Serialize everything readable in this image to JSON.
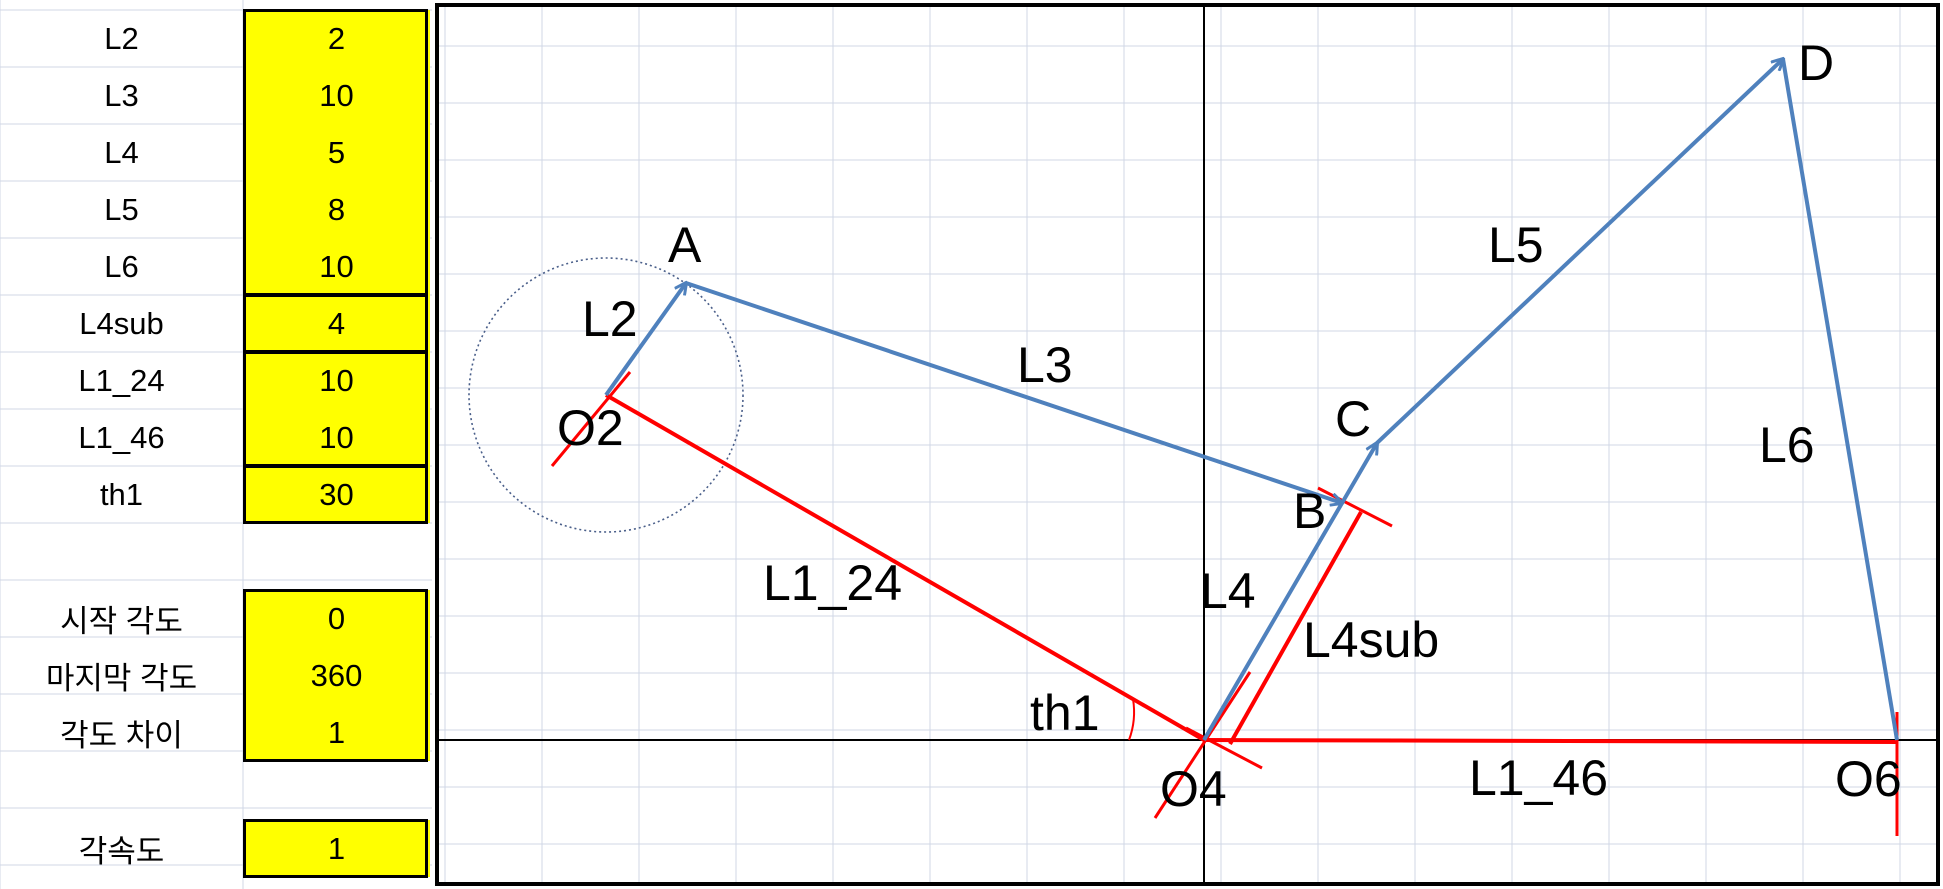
{
  "parameters": [
    {
      "label": "L2",
      "value": "2"
    },
    {
      "label": "L3",
      "value": "10"
    },
    {
      "label": "L4",
      "value": "5"
    },
    {
      "label": "L5",
      "value": "8"
    },
    {
      "label": "L6",
      "value": "10"
    },
    {
      "label": "L4sub",
      "value": "4"
    },
    {
      "label": "L1_24",
      "value": "10"
    },
    {
      "label": "L1_46",
      "value": "10"
    },
    {
      "label": "th1",
      "value": "30"
    }
  ],
  "angles": [
    {
      "label": "시작 각도",
      "value": "0"
    },
    {
      "label": "마지막 각도",
      "value": "360"
    },
    {
      "label": "각도 차이",
      "value": "1"
    }
  ],
  "angular_velocity": {
    "label": "각속도",
    "value": "1"
  },
  "diagram": {
    "points": {
      "A": "A",
      "B": "B",
      "C": "C",
      "D": "D",
      "O2": "O2",
      "O4": "O4",
      "O6": "O6"
    },
    "links": {
      "L2": "L2",
      "L3": "L3",
      "L4": "L4",
      "L5": "L5",
      "L6": "L6",
      "L4sub": "L4sub",
      "L1_24": "L1_24",
      "L1_46": "L1_46"
    },
    "angle": "th1",
    "colors": {
      "link": "#4f81bd",
      "ground": "#ff0000",
      "axis": "#000000",
      "grid": "#d0d7e5",
      "input": "#ffff00"
    }
  }
}
